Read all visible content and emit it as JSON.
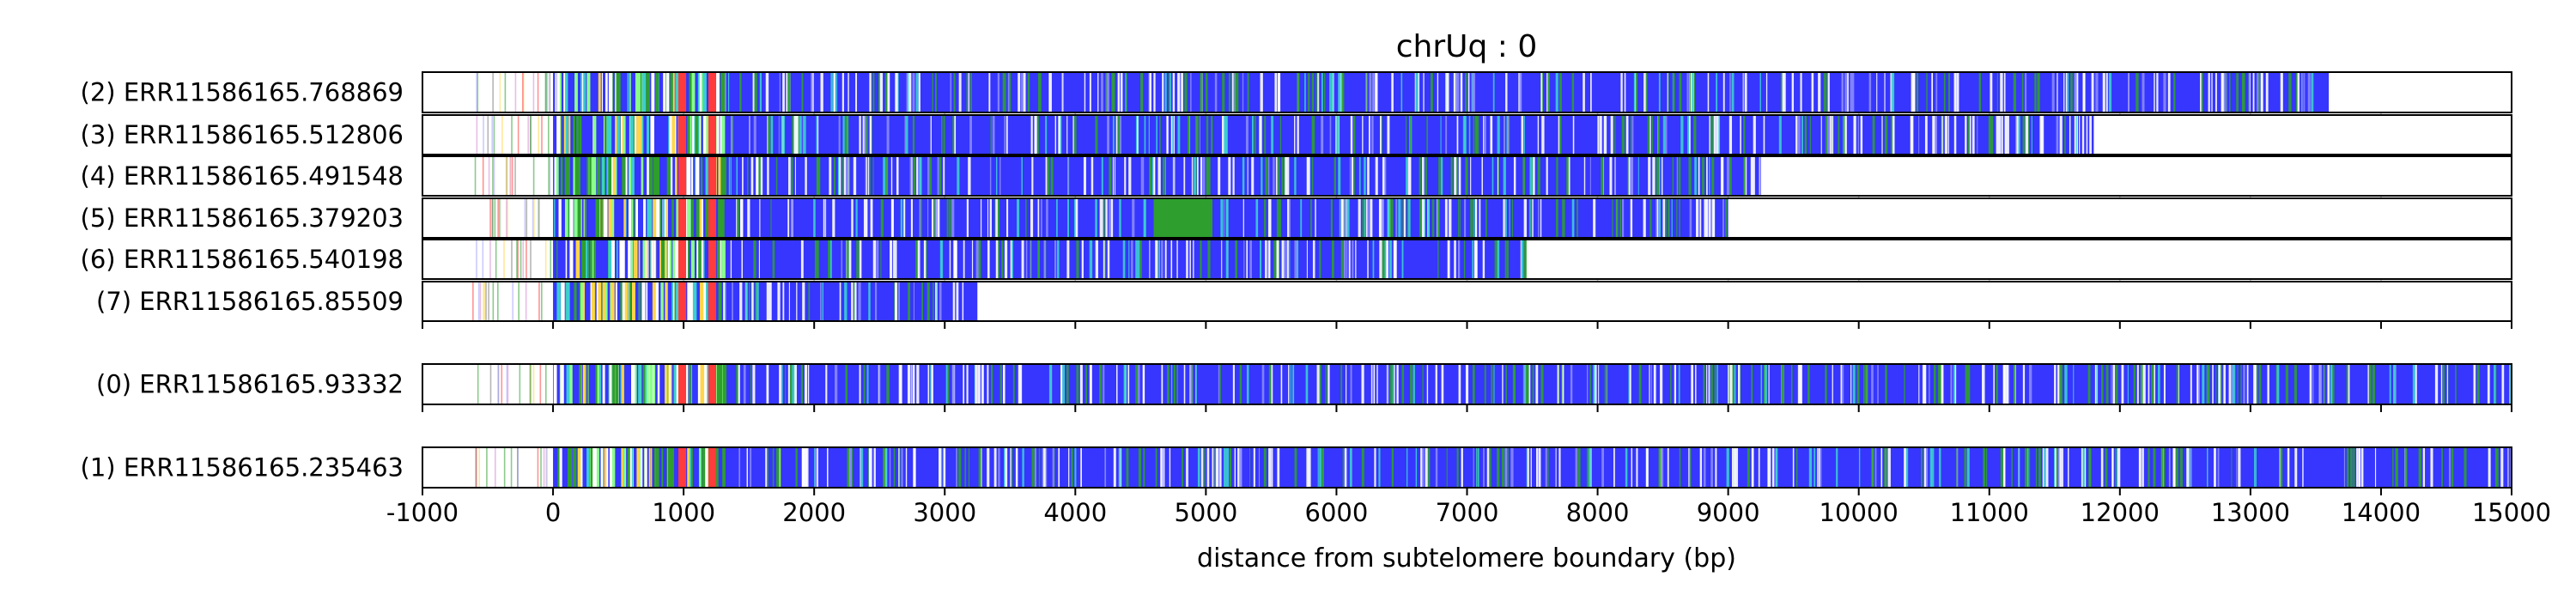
{
  "chart_data": {
    "type": "bar",
    "title": "chrUq : 0",
    "xlabel": "distance from subtelomere boundary (bp)",
    "ylabel": "",
    "xlim": [
      -1000,
      15000
    ],
    "x_ticks": [
      "-1000",
      "0",
      "1000",
      "2000",
      "3000",
      "4000",
      "5000",
      "6000",
      "7000",
      "8000",
      "9000",
      "10000",
      "11000",
      "12000",
      "13000",
      "14000",
      "15000"
    ],
    "grid": "vertical dashed lines at each 1000 bp",
    "colors": {
      "main": "#3636ff",
      "green": "#2e9e2e",
      "red": "#ff3b3b",
      "yellow": "#ffd54a",
      "cyan": "#3ccfcf",
      "white": "#ffffff",
      "grid": "#c0c0c0"
    },
    "groups": [
      {
        "reads": [
          {
            "label": "(2) ERR11586165.768869",
            "main_start": 0,
            "end": 13600
          },
          {
            "label": "(3) ERR11586165.512806",
            "main_start": 0,
            "end": 11800
          },
          {
            "label": "(4) ERR11586165.491548",
            "main_start": 0,
            "end": 9250
          },
          {
            "label": "(5) ERR11586165.379203",
            "main_start": 0,
            "end": 9000
          },
          {
            "label": "(6) ERR11586165.540198",
            "main_start": 0,
            "end": 7450
          },
          {
            "label": "(7) ERR11586165.85509",
            "main_start": 0,
            "end": 3250
          }
        ]
      },
      {
        "reads": [
          {
            "label": "(0) ERR11586165.93332",
            "main_start": 0,
            "end": 15000
          }
        ]
      },
      {
        "reads": [
          {
            "label": "(1) ERR11586165.235463",
            "main_start": 0,
            "end": 15000
          }
        ]
      }
    ]
  }
}
